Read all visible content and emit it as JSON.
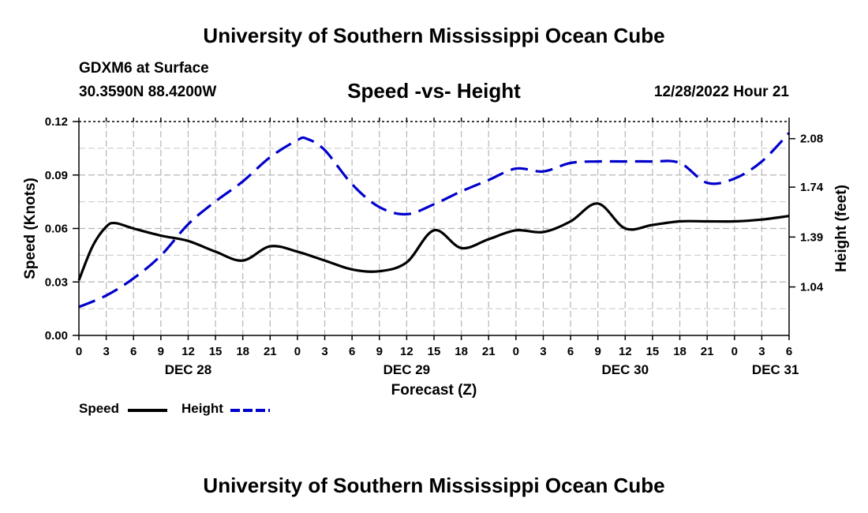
{
  "header": {
    "title": "University of Southern Mississippi Ocean Cube",
    "station": "GDXM6 at Surface",
    "coordinates": "30.3590N  88.4200W",
    "chart_title": "Speed -vs- Height",
    "datetime": "12/28/2022 Hour 21"
  },
  "footer": {
    "title": "University of Southern Mississippi Ocean Cube"
  },
  "legend": {
    "speed_label": "Speed",
    "height_label": "Height",
    "speed_color": "#000000",
    "height_color": "#0000cc"
  },
  "chart_data": {
    "type": "line",
    "title": "Speed -vs- Height",
    "xlabel": "Forecast (Z)",
    "ylabel": "Speed (Knots)",
    "y2label": "Height (feet)",
    "x_tick_labels": [
      "0",
      "3",
      "6",
      "9",
      "12",
      "15",
      "18",
      "21",
      "0",
      "3",
      "6",
      "9",
      "12",
      "15",
      "18",
      "21",
      "0",
      "3",
      "6",
      "9",
      "12",
      "15",
      "18",
      "21",
      "0",
      "3",
      "6"
    ],
    "day_labels": [
      {
        "label": "DEC 28",
        "hour_index": 4
      },
      {
        "label": "DEC 29",
        "hour_index": 12
      },
      {
        "label": "DEC 30",
        "hour_index": 20
      },
      {
        "label": "DEC 31",
        "hour_index": 25.5
      }
    ],
    "ylim": [
      0,
      0.12
    ],
    "y_ticks": [
      "0.00",
      "0.03",
      "0.06",
      "0.09",
      "0.12"
    ],
    "y2lim": [
      0.7,
      2.2
    ],
    "y2_ticks": [
      "1.04",
      "1.39",
      "1.74",
      "2.08"
    ],
    "grid": true,
    "legend_position": "bottom-left",
    "x_hours": [
      0,
      3,
      6,
      9,
      12,
      15,
      18,
      21,
      24,
      27,
      30,
      33,
      36,
      39,
      42,
      45,
      48,
      51,
      54,
      57,
      60,
      63,
      66,
      69,
      72,
      75,
      78
    ],
    "series": [
      {
        "name": "Speed",
        "axis": "left",
        "style": "solid",
        "color": "#000000",
        "x": [
          0,
          1.5,
          3,
          4,
          6,
          9,
          12,
          15,
          18,
          21,
          24,
          27,
          30,
          33,
          36,
          39,
          42,
          45,
          48,
          51,
          54,
          57,
          60,
          63,
          66,
          69,
          72,
          75,
          78
        ],
        "values": [
          0.031,
          0.05,
          0.061,
          0.063,
          0.06,
          0.056,
          0.053,
          0.047,
          0.042,
          0.05,
          0.047,
          0.042,
          0.037,
          0.036,
          0.041,
          0.059,
          0.049,
          0.054,
          0.059,
          0.058,
          0.064,
          0.074,
          0.06,
          0.062,
          0.064,
          0.064,
          0.064,
          0.065,
          0.067
        ]
      },
      {
        "name": "Height",
        "axis": "right",
        "style": "dashed",
        "color": "#0000cc",
        "x": [
          0,
          3,
          6,
          9,
          12,
          15,
          18,
          21,
          24,
          25,
          27,
          30,
          33,
          36,
          39,
          42,
          45,
          48,
          51,
          54,
          57,
          60,
          63,
          66,
          69,
          72,
          75,
          78
        ],
        "values": [
          0.9,
          0.98,
          1.1,
          1.26,
          1.48,
          1.64,
          1.78,
          1.95,
          2.07,
          2.08,
          2.0,
          1.76,
          1.6,
          1.55,
          1.62,
          1.71,
          1.79,
          1.87,
          1.85,
          1.91,
          1.92,
          1.92,
          1.92,
          1.91,
          1.77,
          1.8,
          1.92,
          2.12
        ]
      }
    ]
  }
}
